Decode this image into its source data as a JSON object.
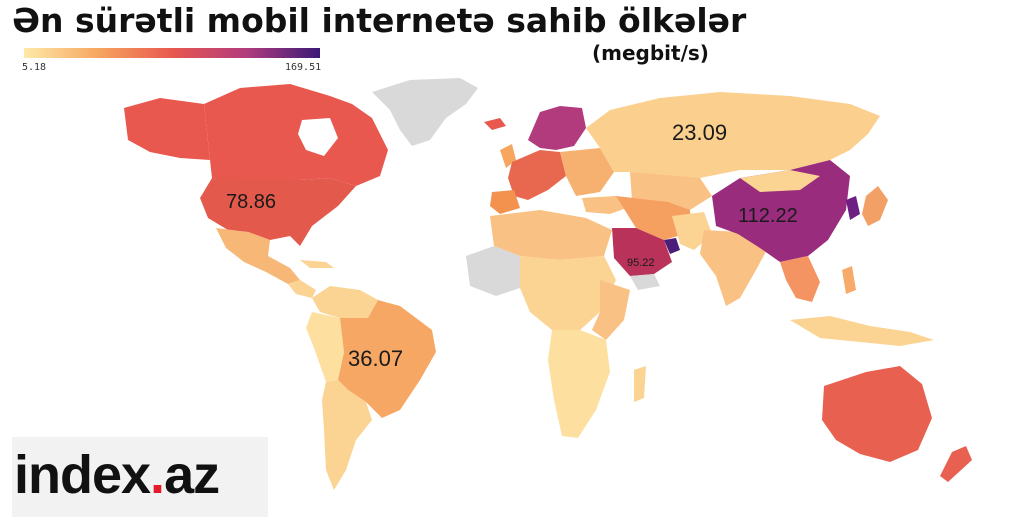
{
  "title": "Ən sürətli mobil internetə sahib ölkələr",
  "unit": "(megbit/s)",
  "legend": {
    "min": "5.18",
    "max": "169.51",
    "colors": [
      "#fde9a8",
      "#f7a660",
      "#e8584f",
      "#b23b7d",
      "#3b1a78"
    ]
  },
  "no_data_color": "#d9d9d9",
  "labels": {
    "russia": "23.09",
    "usa": "78.86",
    "china": "112.22",
    "saudi": "95.22",
    "brazil": "36.07"
  },
  "logo": {
    "text_main": "index",
    "text_dot": ".",
    "text_end": "az"
  }
}
